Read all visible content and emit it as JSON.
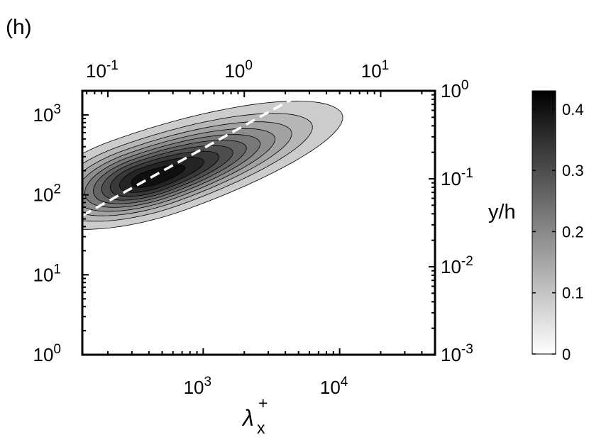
{
  "panel_label": "(h)",
  "chart_data": {
    "type": "contour",
    "xlabel": "λx+",
    "xlabel_main": "λ",
    "xlabel_sub": "x",
    "xlabel_sup": "+",
    "ylabel_right": "y/h",
    "x_bottom": {
      "scale": "log",
      "lim": [
        130,
        50000
      ],
      "ticks": [
        {
          "value": 1000,
          "base": "10",
          "exp": "3"
        },
        {
          "value": 10000,
          "base": "10",
          "exp": "4"
        }
      ]
    },
    "x_top": {
      "scale": "log",
      "lim": [
        0.065,
        25
      ],
      "ticks": [
        {
          "value": 0.1,
          "base": "10",
          "exp": "-1"
        },
        {
          "value": 1,
          "base": "10",
          "exp": "0"
        },
        {
          "value": 10,
          "base": "10",
          "exp": "1"
        }
      ]
    },
    "y_left": {
      "scale": "log",
      "lim": [
        1,
        2000
      ],
      "ticks": [
        {
          "value": 1,
          "base": "10",
          "exp": "0"
        },
        {
          "value": 10,
          "base": "10",
          "exp": "1"
        },
        {
          "value": 100,
          "base": "10",
          "exp": "2"
        },
        {
          "value": 1000,
          "base": "10",
          "exp": "3"
        }
      ]
    },
    "y_right": {
      "scale": "log",
      "lim": [
        0.001,
        1
      ],
      "ticks": [
        {
          "value": 0.001,
          "base": "10",
          "exp": "-3"
        },
        {
          "value": 0.01,
          "base": "10",
          "exp": "-2"
        },
        {
          "value": 0.1,
          "base": "10",
          "exp": "-1"
        },
        {
          "value": 1,
          "base": "10",
          "exp": "0"
        }
      ]
    },
    "colorbar": {
      "lim": [
        0,
        0.43
      ],
      "ticks": [
        0,
        0.1,
        0.2,
        0.3,
        0.4
      ],
      "tick_labels": [
        "0",
        "0.1",
        "0.2",
        "0.3",
        "0.4"
      ],
      "colormap": "gray-reversed"
    },
    "peak": {
      "x": 420,
      "y": 160,
      "value": 0.43
    },
    "contour_levels": [
      0.04,
      0.08,
      0.12,
      0.16,
      0.2,
      0.24,
      0.28,
      0.32,
      0.36,
      0.4
    ],
    "dashed_line": {
      "color": "#ffffff",
      "points": [
        {
          "x": 130,
          "y": 55
        },
        {
          "x": 5000,
          "y": 1750
        }
      ]
    },
    "grid": false
  }
}
